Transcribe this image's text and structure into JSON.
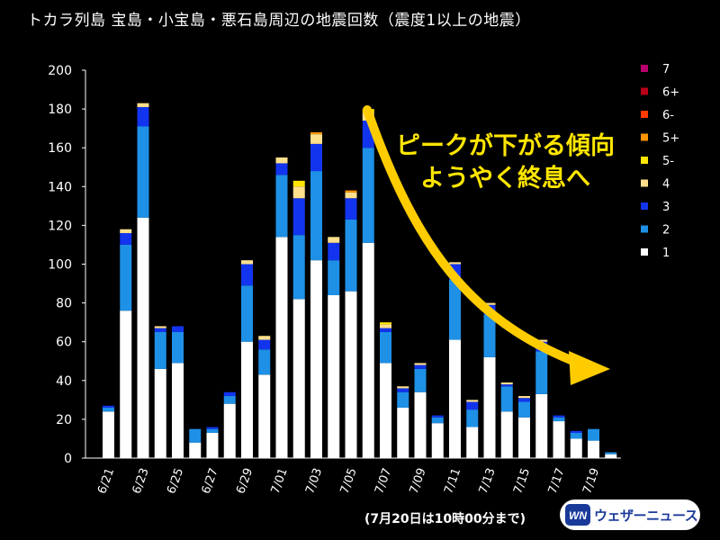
{
  "chart_data": {
    "type": "bar",
    "stacked": true,
    "title": "トカラ列島 宝島・小宝島・悪石島周辺の地震回数（震度1以上の地震）",
    "ylim": [
      0,
      200
    ],
    "yticks": [
      0,
      20,
      40,
      60,
      80,
      100,
      120,
      140,
      160,
      180,
      200
    ],
    "categories": [
      "6/21",
      "6/22",
      "6/23",
      "6/24",
      "6/25",
      "6/26",
      "6/27",
      "6/28",
      "6/29",
      "6/30",
      "7/01",
      "7/02",
      "7/03",
      "7/04",
      "7/05",
      "7/06",
      "7/07",
      "7/08",
      "7/09",
      "7/10",
      "7/11",
      "7/12",
      "7/13",
      "7/14",
      "7/15",
      "7/16",
      "7/17",
      "7/18",
      "7/19",
      "7/20"
    ],
    "xtick_labels": [
      "6/21",
      "6/23",
      "6/25",
      "6/27",
      "6/29",
      "7/01",
      "7/03",
      "7/05",
      "7/07",
      "7/09",
      "7/11",
      "7/13",
      "7/15",
      "7/17",
      "7/19"
    ],
    "series": [
      {
        "name": "1",
        "color": "#ffffff",
        "values": [
          24,
          76,
          124,
          46,
          49,
          8,
          13,
          28,
          60,
          43,
          114,
          82,
          102,
          84,
          86,
          111,
          49,
          26,
          34,
          18,
          61,
          16,
          52,
          24,
          21,
          33,
          19,
          10,
          9,
          2
        ]
      },
      {
        "name": "2",
        "color": "#1e90e6",
        "values": [
          2,
          34,
          47,
          19,
          16,
          7,
          2,
          4,
          29,
          13,
          32,
          33,
          46,
          18,
          37,
          49,
          16,
          8,
          12,
          3,
          31,
          9,
          22,
          13,
          8,
          22,
          2,
          3,
          6,
          1
        ]
      },
      {
        "name": "3",
        "color": "#1234ee",
        "values": [
          1,
          6,
          10,
          2,
          3,
          0,
          1,
          2,
          11,
          5,
          6,
          19,
          14,
          9,
          11,
          14,
          2,
          2,
          2,
          1,
          8,
          4,
          5,
          1,
          2,
          5,
          1,
          1,
          0,
          0
        ]
      },
      {
        "name": "4",
        "color": "#ffe08c",
        "values": [
          0,
          2,
          2,
          1,
          0,
          0,
          0,
          0,
          2,
          2,
          3,
          6,
          5,
          3,
          3,
          4,
          2,
          1,
          1,
          0,
          1,
          1,
          1,
          1,
          1,
          1,
          0,
          0,
          0,
          0
        ]
      },
      {
        "name": "5-",
        "color": "#ffe600",
        "values": [
          0,
          0,
          0,
          0,
          0,
          0,
          0,
          0,
          0,
          0,
          0,
          3,
          0,
          0,
          0,
          2,
          1,
          0,
          0,
          0,
          0,
          0,
          0,
          0,
          0,
          0,
          0,
          0,
          0,
          0
        ]
      },
      {
        "name": "5+",
        "color": "#ff9400",
        "values": [
          0,
          0,
          0,
          0,
          0,
          0,
          0,
          0,
          0,
          0,
          0,
          0,
          1,
          0,
          1,
          0,
          0,
          0,
          0,
          0,
          0,
          0,
          0,
          0,
          0,
          0,
          0,
          0,
          0,
          0
        ]
      },
      {
        "name": "6-",
        "color": "#ff3b00",
        "values": [
          0,
          0,
          0,
          0,
          0,
          0,
          0,
          0,
          0,
          0,
          0,
          0,
          0,
          0,
          0,
          0,
          0,
          0,
          0,
          0,
          0,
          0,
          0,
          0,
          0,
          0,
          0,
          0,
          0,
          0
        ]
      },
      {
        "name": "6+",
        "color": "#b80018",
        "values": [
          0,
          0,
          0,
          0,
          0,
          0,
          0,
          0,
          0,
          0,
          0,
          0,
          0,
          0,
          0,
          0,
          0,
          0,
          0,
          0,
          0,
          0,
          0,
          0,
          0,
          0,
          0,
          0,
          0,
          0
        ]
      },
      {
        "name": "7",
        "color": "#b8006e",
        "values": [
          0,
          0,
          0,
          0,
          0,
          0,
          0,
          0,
          0,
          0,
          0,
          0,
          0,
          0,
          0,
          0,
          0,
          0,
          0,
          0,
          0,
          0,
          0,
          0,
          0,
          0,
          0,
          0,
          0,
          0
        ]
      }
    ],
    "legend": {
      "placement": "right",
      "order": [
        "7",
        "6+",
        "6-",
        "5+",
        "5-",
        "4",
        "3",
        "2",
        "1"
      ]
    },
    "annotation": {
      "line1": "ピークが下がる傾向",
      "line2": "ようやく終息へ",
      "color": "#ffe600"
    },
    "arrow_color": "#ffcc00",
    "grid": false
  },
  "footnote": "(7月20日は10時00分まで)",
  "logo": {
    "text": "ウェザーニュース",
    "mark_text": "WN",
    "color": "#1a3a9a"
  }
}
